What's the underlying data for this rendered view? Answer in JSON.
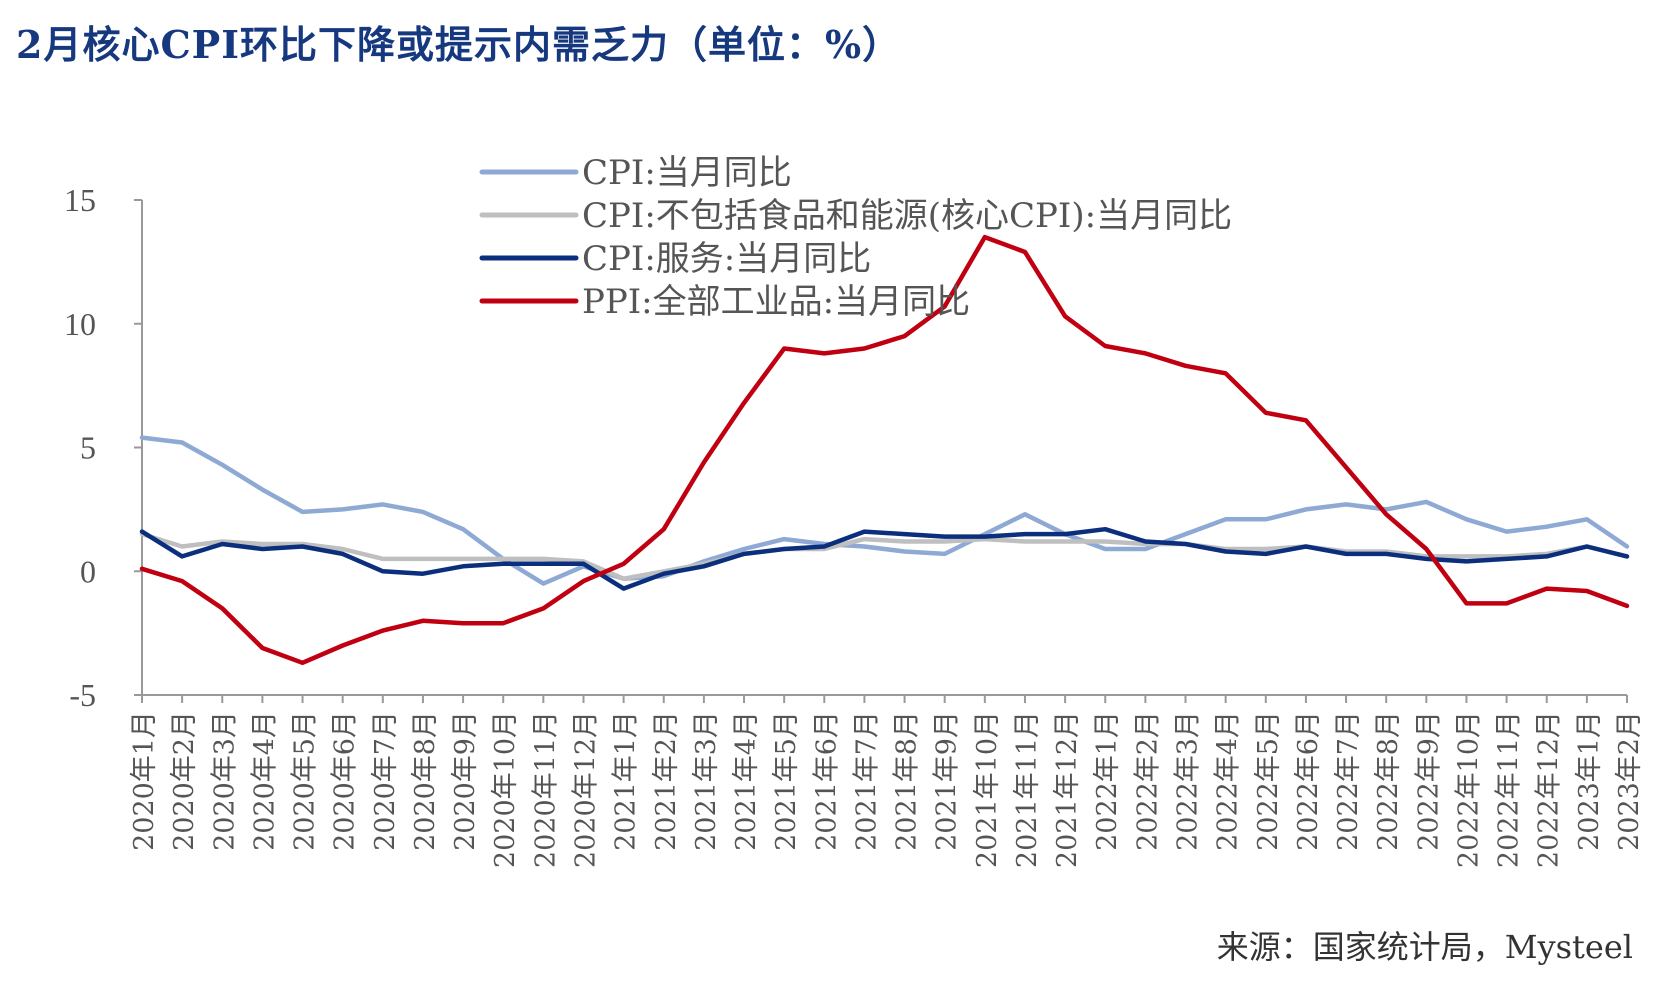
{
  "title": "2月核心CPI环比下降或提示内需乏力（单位：%）",
  "source": "来源：国家统计局，Mysteel",
  "chart_data": {
    "type": "line",
    "ylim": [
      -5,
      15
    ],
    "yticks": [
      15,
      10,
      5,
      0,
      -5
    ],
    "grid": false,
    "legend_position": "top-center",
    "categories": [
      "2020年1月",
      "2020年2月",
      "2020年3月",
      "2020年4月",
      "2020年5月",
      "2020年6月",
      "2020年7月",
      "2020年8月",
      "2020年9月",
      "2020年10月",
      "2020年11月",
      "2020年12月",
      "2021年1月",
      "2021年2月",
      "2021年3月",
      "2021年4月",
      "2021年5月",
      "2021年6月",
      "2021年7月",
      "2021年8月",
      "2021年9月",
      "2021年10月",
      "2021年11月",
      "2021年12月",
      "2022年1月",
      "2022年2月",
      "2022年3月",
      "2022年4月",
      "2022年5月",
      "2022年6月",
      "2022年7月",
      "2022年8月",
      "2022年9月",
      "2022年10月",
      "2022年11月",
      "2022年12月",
      "2023年1月",
      "2023年2月"
    ],
    "series": [
      {
        "name": "CPI:当月同比",
        "color": "#8eaad4",
        "values": [
          5.4,
          5.2,
          4.3,
          3.3,
          2.4,
          2.5,
          2.7,
          2.4,
          1.7,
          0.5,
          -0.5,
          0.2,
          -0.3,
          -0.2,
          0.4,
          0.9,
          1.3,
          1.1,
          1.0,
          0.8,
          0.7,
          1.5,
          2.3,
          1.5,
          0.9,
          0.9,
          1.5,
          2.1,
          2.1,
          2.5,
          2.7,
          2.5,
          2.8,
          2.1,
          1.6,
          1.8,
          2.1,
          1.0
        ]
      },
      {
        "name": "CPI:不包括食品和能源(核心CPI):当月同比",
        "color": "#bfbfbf",
        "values": [
          1.5,
          1.0,
          1.2,
          1.1,
          1.1,
          0.9,
          0.5,
          0.5,
          0.5,
          0.5,
          0.5,
          0.4,
          -0.3,
          0.0,
          0.3,
          0.7,
          0.9,
          0.9,
          1.3,
          1.2,
          1.2,
          1.3,
          1.2,
          1.2,
          1.2,
          1.1,
          1.1,
          0.9,
          0.9,
          1.0,
          0.8,
          0.8,
          0.6,
          0.6,
          0.6,
          0.7,
          1.0,
          0.6
        ]
      },
      {
        "name": "CPI:服务:当月同比",
        "color": "#0c2f7d",
        "values": [
          1.6,
          0.6,
          1.1,
          0.9,
          1.0,
          0.7,
          0.0,
          -0.1,
          0.2,
          0.3,
          0.3,
          0.3,
          -0.7,
          -0.1,
          0.2,
          0.7,
          0.9,
          1.0,
          1.6,
          1.5,
          1.4,
          1.4,
          1.5,
          1.5,
          1.7,
          1.2,
          1.1,
          0.8,
          0.7,
          1.0,
          0.7,
          0.7,
          0.5,
          0.4,
          0.5,
          0.6,
          1.0,
          0.6
        ]
      },
      {
        "name": "PPI:全部工业品:当月同比",
        "color": "#c00010",
        "values": [
          0.1,
          -0.4,
          -1.5,
          -3.1,
          -3.7,
          -3.0,
          -2.4,
          -2.0,
          -2.1,
          -2.1,
          -1.5,
          -0.4,
          0.3,
          1.7,
          4.4,
          6.8,
          9.0,
          8.8,
          9.0,
          9.5,
          10.7,
          13.5,
          12.9,
          10.3,
          9.1,
          8.8,
          8.3,
          8.0,
          6.4,
          6.1,
          4.2,
          2.3,
          0.9,
          -1.3,
          -1.3,
          -0.7,
          -0.8,
          -1.4
        ]
      }
    ]
  }
}
